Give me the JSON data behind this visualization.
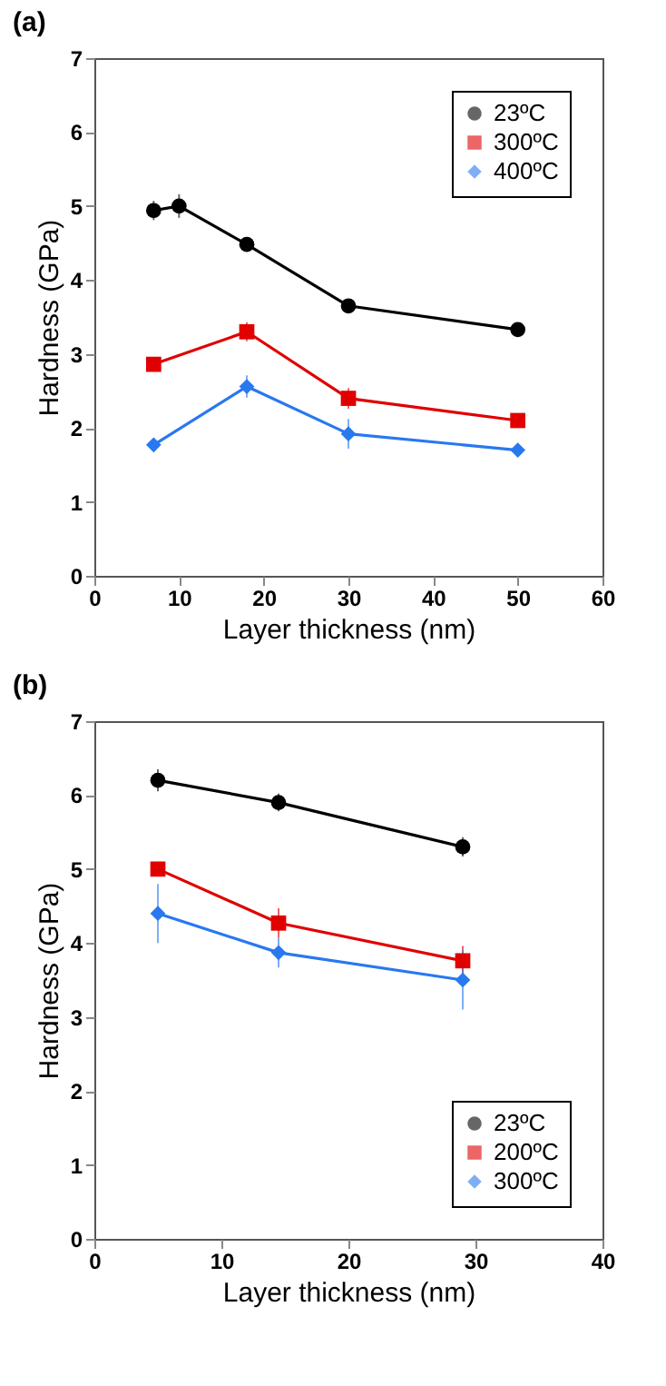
{
  "chart_data": [
    {
      "type": "line",
      "title": "(a)",
      "xlabel": "Layer thickness (nm)",
      "ylabel": "Hardness (GPa)",
      "xlim": [
        0,
        60
      ],
      "xticks": [
        0,
        10,
        20,
        30,
        40,
        50,
        60
      ],
      "ylim": [
        0,
        7
      ],
      "yticks": [
        0,
        1,
        2,
        3,
        4,
        5,
        6,
        7
      ],
      "grid": false,
      "legend": "top right",
      "line_style": "solid",
      "series": [
        {
          "name": "23ºC",
          "color": "#000000",
          "marker": "circle",
          "x": [
            7,
            10,
            18,
            30,
            50
          ],
          "values": [
            4.94,
            5.0,
            4.48,
            3.65,
            3.33
          ],
          "errors": [
            0.13,
            0.16,
            0.07,
            0.08,
            0.09
          ]
        },
        {
          "name": "300ºC",
          "color": "#e00000",
          "marker": "square",
          "x": [
            7,
            18,
            30,
            50
          ],
          "values": [
            2.86,
            3.3,
            2.4,
            2.1
          ],
          "errors": [
            0.05,
            0.13,
            0.14,
            0.05
          ]
        },
        {
          "name": "400ºC",
          "color": "#2878f0",
          "marker": "diamond",
          "x": [
            7,
            18,
            30,
            50
          ],
          "values": [
            1.77,
            2.56,
            1.92,
            1.7
          ],
          "errors": [
            0.05,
            0.15,
            0.2,
            0.05
          ]
        }
      ]
    },
    {
      "type": "line",
      "title": "(b)",
      "xlabel": "Layer thickness (nm)",
      "ylabel": "Hardness (GPa)",
      "xlim": [
        0,
        40
      ],
      "xticks": [
        0,
        10,
        20,
        30,
        40
      ],
      "ylim": [
        0,
        7
      ],
      "yticks": [
        0,
        1,
        2,
        3,
        4,
        5,
        6,
        7
      ],
      "grid": false,
      "legend": "bottom right",
      "line_style": "solid",
      "series": [
        {
          "name": "23ºC",
          "color": "#000000",
          "marker": "circle",
          "x": [
            5,
            14.5,
            29
          ],
          "values": [
            6.2,
            5.9,
            5.3
          ],
          "errors": [
            0.15,
            0.12,
            0.13
          ]
        },
        {
          "name": "200ºC",
          "color": "#e00000",
          "marker": "square",
          "x": [
            5,
            14.5,
            29
          ],
          "values": [
            5.0,
            4.27,
            3.76
          ],
          "errors": [
            0.05,
            0.2,
            0.2
          ]
        },
        {
          "name": "300ºC",
          "color": "#2878f0",
          "marker": "diamond",
          "x": [
            5,
            14.5,
            29
          ],
          "values": [
            4.4,
            3.87,
            3.5
          ],
          "errors": [
            0.4,
            0.2,
            0.4
          ]
        }
      ]
    }
  ]
}
